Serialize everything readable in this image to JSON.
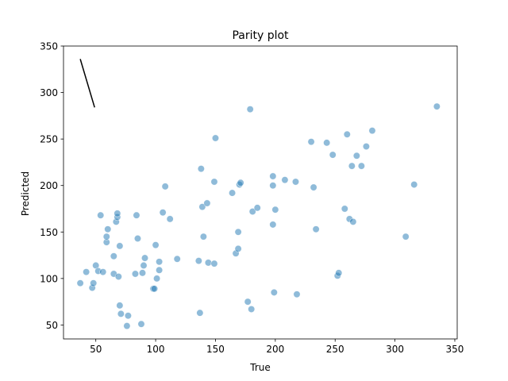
{
  "chart_data": {
    "type": "scatter",
    "title": "Parity plot",
    "xlabel": "True",
    "ylabel": "Predicted",
    "xlim": [
      23,
      352
    ],
    "ylim": [
      35,
      350
    ],
    "xticks": [
      50,
      100,
      150,
      200,
      250,
      300,
      350
    ],
    "yticks": [
      50,
      100,
      150,
      200,
      250,
      300,
      350
    ],
    "xtick_labels": [
      "50",
      "100",
      "150",
      "200",
      "250",
      "300",
      "350"
    ],
    "ytick_labels": [
      "50",
      "100",
      "150",
      "200",
      "250",
      "300",
      "350"
    ],
    "grid": false,
    "point_color": "#1f77b4",
    "line_color": "#000000",
    "reference_line": [
      {
        "x": 37,
        "y": 336
      },
      {
        "x": 49,
        "y": 284
      }
    ],
    "series": [
      {
        "points": [
          {
            "x": 37,
            "y": 95
          },
          {
            "x": 42,
            "y": 107
          },
          {
            "x": 47,
            "y": 90
          },
          {
            "x": 48,
            "y": 95
          },
          {
            "x": 50,
            "y": 114
          },
          {
            "x": 52,
            "y": 108
          },
          {
            "x": 54,
            "y": 168
          },
          {
            "x": 56,
            "y": 107
          },
          {
            "x": 59,
            "y": 139
          },
          {
            "x": 59,
            "y": 145
          },
          {
            "x": 60,
            "y": 153
          },
          {
            "x": 65,
            "y": 124
          },
          {
            "x": 65,
            "y": 105
          },
          {
            "x": 67,
            "y": 161
          },
          {
            "x": 68,
            "y": 166
          },
          {
            "x": 68,
            "y": 170
          },
          {
            "x": 69,
            "y": 102
          },
          {
            "x": 70,
            "y": 135
          },
          {
            "x": 70,
            "y": 71
          },
          {
            "x": 71,
            "y": 62
          },
          {
            "x": 76,
            "y": 49
          },
          {
            "x": 77,
            "y": 60
          },
          {
            "x": 83,
            "y": 105
          },
          {
            "x": 84,
            "y": 168
          },
          {
            "x": 85,
            "y": 143
          },
          {
            "x": 88,
            "y": 51
          },
          {
            "x": 89,
            "y": 106
          },
          {
            "x": 90,
            "y": 114
          },
          {
            "x": 91,
            "y": 122
          },
          {
            "x": 98,
            "y": 89
          },
          {
            "x": 99,
            "y": 89
          },
          {
            "x": 100,
            "y": 136
          },
          {
            "x": 101,
            "y": 100
          },
          {
            "x": 103,
            "y": 118
          },
          {
            "x": 103,
            "y": 109
          },
          {
            "x": 106,
            "y": 171
          },
          {
            "x": 108,
            "y": 199
          },
          {
            "x": 112,
            "y": 164
          },
          {
            "x": 118,
            "y": 121
          },
          {
            "x": 136,
            "y": 119
          },
          {
            "x": 137,
            "y": 63
          },
          {
            "x": 138,
            "y": 218
          },
          {
            "x": 139,
            "y": 177
          },
          {
            "x": 140,
            "y": 145
          },
          {
            "x": 143,
            "y": 181
          },
          {
            "x": 144,
            "y": 117
          },
          {
            "x": 149,
            "y": 116
          },
          {
            "x": 149,
            "y": 204
          },
          {
            "x": 150,
            "y": 251
          },
          {
            "x": 164,
            "y": 192
          },
          {
            "x": 167,
            "y": 127
          },
          {
            "x": 169,
            "y": 150
          },
          {
            "x": 169,
            "y": 132
          },
          {
            "x": 170,
            "y": 201
          },
          {
            "x": 171,
            "y": 203
          },
          {
            "x": 177,
            "y": 75
          },
          {
            "x": 179,
            "y": 282
          },
          {
            "x": 180,
            "y": 67
          },
          {
            "x": 181,
            "y": 172
          },
          {
            "x": 185,
            "y": 176
          },
          {
            "x": 198,
            "y": 210
          },
          {
            "x": 198,
            "y": 200
          },
          {
            "x": 198,
            "y": 158
          },
          {
            "x": 199,
            "y": 85
          },
          {
            "x": 200,
            "y": 174
          },
          {
            "x": 208,
            "y": 206
          },
          {
            "x": 217,
            "y": 204
          },
          {
            "x": 218,
            "y": 83
          },
          {
            "x": 230,
            "y": 247
          },
          {
            "x": 232,
            "y": 198
          },
          {
            "x": 234,
            "y": 153
          },
          {
            "x": 243,
            "y": 246
          },
          {
            "x": 248,
            "y": 233
          },
          {
            "x": 252,
            "y": 103
          },
          {
            "x": 253,
            "y": 106
          },
          {
            "x": 258,
            "y": 175
          },
          {
            "x": 260,
            "y": 255
          },
          {
            "x": 262,
            "y": 164
          },
          {
            "x": 264,
            "y": 221
          },
          {
            "x": 265,
            "y": 161
          },
          {
            "x": 268,
            "y": 232
          },
          {
            "x": 272,
            "y": 221
          },
          {
            "x": 276,
            "y": 242
          },
          {
            "x": 281,
            "y": 259
          },
          {
            "x": 309,
            "y": 145
          },
          {
            "x": 316,
            "y": 201
          },
          {
            "x": 335,
            "y": 285
          }
        ]
      }
    ]
  }
}
